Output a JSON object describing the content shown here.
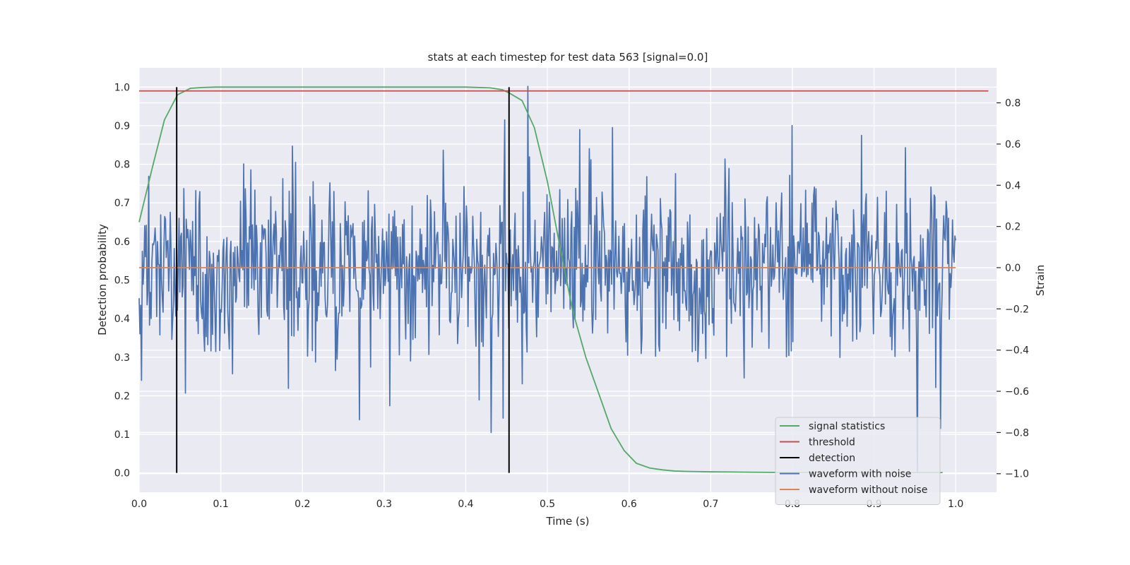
{
  "chart_data": {
    "type": "line",
    "title": "stats at each timestep for test data 563 [signal=0.0]",
    "xlabel": "Time (s)",
    "ylabel_left": "Detection probability",
    "ylabel_right": "Strain",
    "xlim": [
      0.0,
      1.05
    ],
    "ylim_left": [
      -0.05,
      1.05
    ],
    "ylim_right": [
      -1.09,
      0.97
    ],
    "x_ticks": [
      0.0,
      0.1,
      0.2,
      0.3,
      0.4,
      0.5,
      0.6,
      0.7,
      0.8,
      0.9,
      1.0
    ],
    "x_tick_labels": [
      "0.0",
      "0.1",
      "0.2",
      "0.3",
      "0.4",
      "0.5",
      "0.6",
      "0.7",
      "0.8",
      "0.9",
      "1.0"
    ],
    "y_left_ticks": [
      0.0,
      0.1,
      0.2,
      0.3,
      0.4,
      0.5,
      0.6,
      0.7,
      0.8,
      0.9,
      1.0
    ],
    "y_left_tick_labels": [
      "0.0",
      "0.1",
      "0.2",
      "0.3",
      "0.4",
      "0.5",
      "0.6",
      "0.7",
      "0.8",
      "0.9",
      "1.0"
    ],
    "y_right_ticks": [
      -1.0,
      -0.8,
      -0.6,
      -0.4,
      -0.2,
      0.0,
      0.2,
      0.4,
      0.6,
      0.8
    ],
    "y_right_tick_labels": [
      "−1.0",
      "−0.8",
      "−0.6",
      "−0.4",
      "−0.2",
      "0.0",
      "0.2",
      "0.4",
      "0.6",
      "0.8"
    ],
    "grid": true,
    "legend_position": "lower-right",
    "series": [
      {
        "name": "signal statistics",
        "color": "#55a868",
        "axis": "left",
        "x": [
          0.0,
          0.016,
          0.031,
          0.047,
          0.063,
          0.078,
          0.094,
          0.11,
          0.2,
          0.3,
          0.4,
          0.43,
          0.445,
          0.453,
          0.469,
          0.484,
          0.5,
          0.516,
          0.531,
          0.547,
          0.563,
          0.578,
          0.594,
          0.609,
          0.625,
          0.641,
          0.656,
          0.672,
          0.7,
          0.75,
          0.8,
          0.9,
          0.984
        ],
        "values": [
          0.65,
          0.79,
          0.915,
          0.98,
          0.997,
          0.999,
          1.0,
          1.0,
          1.0,
          1.0,
          1.0,
          0.998,
          0.993,
          0.985,
          0.965,
          0.895,
          0.755,
          0.58,
          0.42,
          0.3,
          0.205,
          0.115,
          0.058,
          0.025,
          0.013,
          0.008,
          0.005,
          0.004,
          0.003,
          0.002,
          0.001,
          0.001,
          0.001
        ]
      },
      {
        "name": "threshold",
        "color": "#c44e52",
        "axis": "left",
        "x": [
          0.0,
          1.04
        ],
        "values": [
          0.99,
          0.99
        ]
      },
      {
        "name": "detection",
        "color": "#000000",
        "axis": "left",
        "x": [
          0.046,
          0.453
        ],
        "values": [
          0.0,
          1.0
        ]
      },
      {
        "name": "waveform with noise",
        "color": "#4c72b0",
        "axis": "right",
        "x_start": 0.0,
        "x_end": 1.0,
        "n_points": 1024,
        "seed": 563,
        "sigma": 0.21,
        "peaks": [
          [
            0.188,
            0.59
          ],
          [
            0.307,
            -0.67
          ],
          [
            0.372,
            0.57
          ],
          [
            0.431,
            -0.8
          ],
          [
            0.446,
            -0.73
          ],
          [
            0.476,
            0.88
          ],
          [
            0.54,
            0.67
          ],
          [
            0.58,
            0.68
          ],
          [
            0.8,
            0.69
          ],
          [
            0.953,
            -0.99
          ],
          [
            0.981,
            -0.78
          ]
        ]
      },
      {
        "name": "waveform without noise",
        "color": "#dd8452",
        "axis": "right",
        "x": [
          0.0,
          1.0
        ],
        "values": [
          0.0,
          0.0
        ]
      }
    ]
  }
}
